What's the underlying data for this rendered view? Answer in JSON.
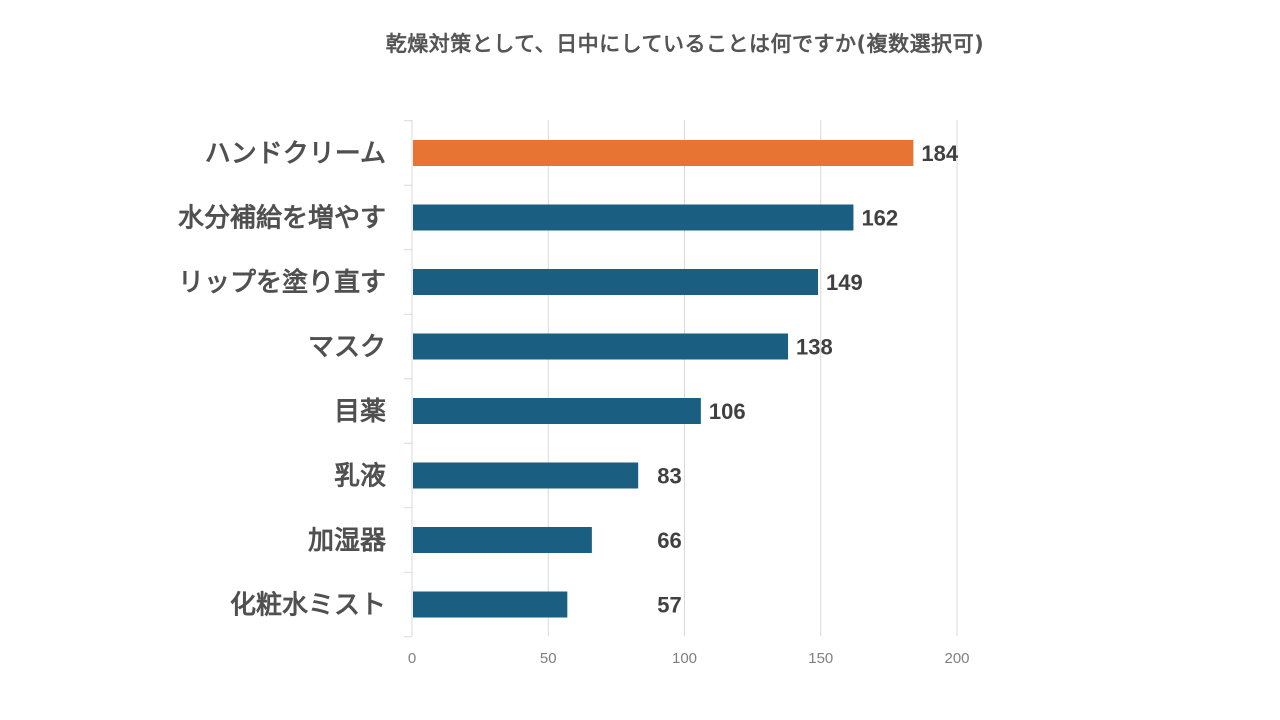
{
  "chart_data": {
    "type": "bar",
    "orientation": "horizontal",
    "title": "乾燥対策として、日中にしていることは何ですか(複数選択可)",
    "categories": [
      "ハンドクリーム",
      "水分補給を増やす",
      "リップを塗り直す",
      "マスク",
      "目薬",
      "乳液",
      "加湿器",
      "化粧水ミスト"
    ],
    "values": [
      184,
      162,
      149,
      138,
      106,
      83,
      66,
      57
    ],
    "highlight_index": 0,
    "colors": {
      "highlight": "#E87433",
      "default": "#1A5F82",
      "grid": "#D9D9D9"
    },
    "xlim": [
      0,
      200
    ],
    "xticks": [
      "0",
      "50",
      "100",
      "150",
      "200"
    ],
    "grid": true,
    "xlabel": "",
    "ylabel": ""
  }
}
